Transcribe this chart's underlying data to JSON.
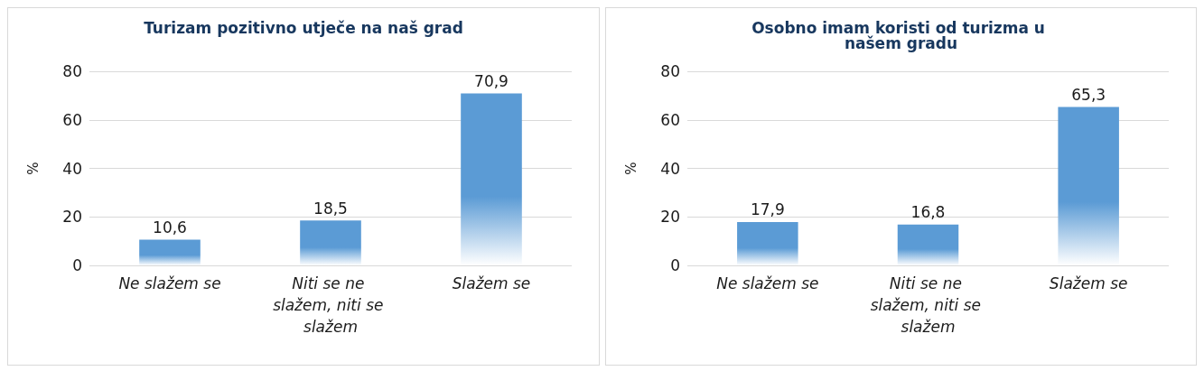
{
  "chart_data": [
    {
      "type": "bar",
      "title": "Turizam pozitivno utječe na naš grad",
      "ylabel": "%",
      "categories": [
        "Ne slažem se",
        "Niti se ne slažem, niti se slažem",
        "Slažem se"
      ],
      "values": [
        10.6,
        18.5,
        70.9
      ],
      "value_labels": [
        "10,6",
        "18,5",
        "70,9"
      ],
      "color": "#5b9bd5",
      "ylim": [
        0,
        80
      ],
      "yticks": [
        0,
        20,
        40,
        60,
        80
      ],
      "grid": "y"
    },
    {
      "type": "bar",
      "title": "Osobno imam koristi od turizma u našem gradu",
      "ylabel": "%",
      "categories": [
        "Ne slažem se",
        "Niti se ne slažem, niti se slažem",
        "Slažem se"
      ],
      "values": [
        17.9,
        16.8,
        65.3
      ],
      "value_labels": [
        "17,9",
        "16,8",
        "65,3"
      ],
      "color": "#5b9bd5",
      "ylim": [
        0,
        80
      ],
      "yticks": [
        0,
        20,
        40,
        60,
        80
      ],
      "grid": "y"
    }
  ]
}
